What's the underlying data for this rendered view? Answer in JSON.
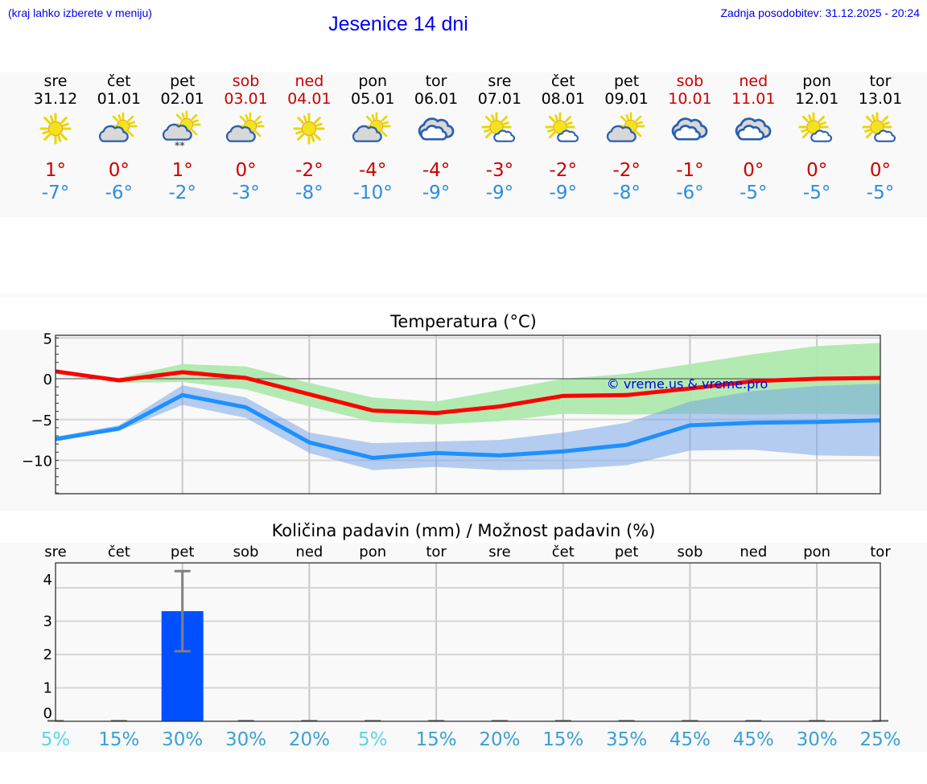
{
  "header": {
    "location_hint": "(kraj lahko izberete v meniju)",
    "title": "Jesenice 14 dni",
    "last_update": "Zadnja posodobitev: 31.12.2025 - 20:24"
  },
  "colors": {
    "link_blue": "#0000ee",
    "max_temp": "#cc0000",
    "min_temp": "#2b8de0",
    "max_line": "#ff0000",
    "min_line": "#1e90ff",
    "max_band": "#aee9ae",
    "min_band": "#adc6f2",
    "bar": "#0050ff",
    "errorbar": "#808080"
  },
  "forecast": [
    {
      "day": "sre",
      "date": "31.12",
      "weekend": false,
      "icon": "sun-icon",
      "max": "1°",
      "min": "-7°"
    },
    {
      "day": "čet",
      "date": "01.01",
      "weekend": false,
      "icon": "partly-cloudy-icon",
      "max": "0°",
      "min": "-6°"
    },
    {
      "day": "pet",
      "date": "02.01",
      "weekend": false,
      "icon": "partly-cloudy-snow-icon",
      "max": "1°",
      "min": "-2°"
    },
    {
      "day": "sob",
      "date": "03.01",
      "weekend": true,
      "icon": "partly-cloudy-icon",
      "max": "0°",
      "min": "-3°"
    },
    {
      "day": "ned",
      "date": "04.01",
      "weekend": true,
      "icon": "sun-icon",
      "max": "-2°",
      "min": "-8°"
    },
    {
      "day": "pon",
      "date": "05.01",
      "weekend": false,
      "icon": "partly-cloudy-icon",
      "max": "-4°",
      "min": "-10°"
    },
    {
      "day": "tor",
      "date": "06.01",
      "weekend": false,
      "icon": "cloudy-icon",
      "max": "-4°",
      "min": "-9°"
    },
    {
      "day": "sre",
      "date": "07.01",
      "weekend": false,
      "icon": "mostly-sunny-icon",
      "max": "-3°",
      "min": "-9°"
    },
    {
      "day": "čet",
      "date": "08.01",
      "weekend": false,
      "icon": "mostly-sunny-icon",
      "max": "-2°",
      "min": "-9°"
    },
    {
      "day": "pet",
      "date": "09.01",
      "weekend": false,
      "icon": "partly-cloudy-icon",
      "max": "-2°",
      "min": "-8°"
    },
    {
      "day": "sob",
      "date": "10.01",
      "weekend": true,
      "icon": "cloudy-icon",
      "max": "-1°",
      "min": "-6°"
    },
    {
      "day": "ned",
      "date": "11.01",
      "weekend": true,
      "icon": "cloudy-icon",
      "max": "0°",
      "min": "-5°"
    },
    {
      "day": "pon",
      "date": "12.01",
      "weekend": false,
      "icon": "mostly-sunny-icon",
      "max": "0°",
      "min": "-5°"
    },
    {
      "day": "tor",
      "date": "13.01",
      "weekend": false,
      "icon": "mostly-sunny-icon",
      "max": "0°",
      "min": "-5°"
    }
  ],
  "chart_data": [
    {
      "type": "line",
      "title": "Temperatura (°C)",
      "xlabel": "",
      "ylabel": "",
      "x": [
        "31.12",
        "01.01",
        "02.01",
        "03.01",
        "04.01",
        "05.01",
        "06.01",
        "07.01",
        "08.01",
        "09.01",
        "10.01",
        "11.01",
        "12.01",
        "13.01"
      ],
      "ylim": [
        -14,
        5
      ],
      "yticks": [
        5,
        0,
        -5,
        -10
      ],
      "ytick_labels": [
        "5",
        "0",
        "−5",
        "−10"
      ],
      "grid": true,
      "watermark": "© vreme.us & vreme.pro",
      "series": [
        {
          "name": "max",
          "color": "#ff0000",
          "values": [
            0.9,
            -0.2,
            0.8,
            0.1,
            -1.9,
            -3.9,
            -4.2,
            -3.4,
            -2.1,
            -2.0,
            -1.2,
            -0.3,
            0.0,
            0.1
          ],
          "band_upper": [
            1.0,
            0.1,
            1.8,
            1.5,
            -0.5,
            -2.3,
            -2.8,
            -1.4,
            0.0,
            0.6,
            1.8,
            3.0,
            4.0,
            4.4
          ],
          "band_lower": [
            0.8,
            -0.5,
            -0.4,
            -1.3,
            -3.4,
            -5.3,
            -5.6,
            -5.2,
            -4.3,
            -4.4,
            -4.3,
            -4.4,
            -4.3,
            -4.4
          ]
        },
        {
          "name": "min",
          "color": "#1e90ff",
          "values": [
            -7.4,
            -6.1,
            -2.0,
            -3.5,
            -7.8,
            -9.7,
            -9.1,
            -9.4,
            -8.9,
            -8.1,
            -5.7,
            -5.4,
            -5.3,
            -5.1
          ],
          "band_upper": [
            -7.1,
            -5.7,
            -0.8,
            -2.3,
            -6.6,
            -7.9,
            -7.7,
            -7.5,
            -6.6,
            -5.4,
            -2.8,
            -1.5,
            -0.9,
            -0.6
          ],
          "band_lower": [
            -7.6,
            -6.4,
            -3.2,
            -4.8,
            -9.1,
            -11.2,
            -10.8,
            -11.2,
            -11.1,
            -10.6,
            -8.8,
            -8.7,
            -9.4,
            -9.5
          ]
        }
      ]
    },
    {
      "type": "bar",
      "title": "Količina padavin (mm) / Možnost padavin (%)",
      "xlabel": "",
      "ylabel": "",
      "categories": [
        "sre",
        "čet",
        "pet",
        "sob",
        "ned",
        "pon",
        "tor",
        "sre",
        "čet",
        "pet",
        "sob",
        "ned",
        "pon",
        "tor"
      ],
      "values": [
        0,
        0,
        3.3,
        0,
        0,
        0,
        0,
        0,
        0,
        0,
        0,
        0,
        0,
        0
      ],
      "error_low": [
        0,
        0,
        2.1,
        0,
        0,
        0,
        0,
        0,
        0,
        0,
        0,
        0,
        0,
        0
      ],
      "error_high": [
        0,
        0,
        4.5,
        0,
        0,
        0,
        0,
        0,
        0,
        0,
        0,
        0,
        0,
        0
      ],
      "ylim": [
        0,
        4.75
      ],
      "yticks": [
        0,
        1,
        2,
        3,
        4
      ],
      "probability_labels": [
        "5%",
        "15%",
        "30%",
        "30%",
        "20%",
        "5%",
        "15%",
        "20%",
        "15%",
        "35%",
        "45%",
        "45%",
        "30%",
        "25%"
      ],
      "probability_low_color": "#5ad6e6",
      "probability_color": "#3aa0d6",
      "grid": true
    }
  ]
}
